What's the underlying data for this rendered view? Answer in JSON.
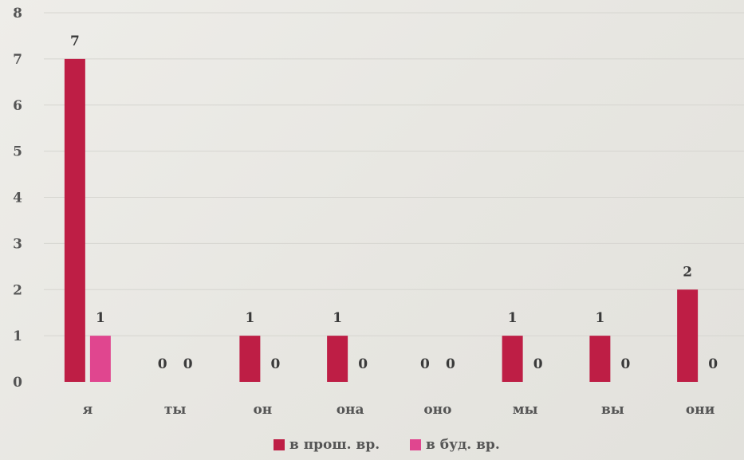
{
  "chart_data": {
    "type": "bar",
    "categories": [
      "я",
      "ты",
      "он",
      "она",
      "оно",
      "мы",
      "вы",
      "они"
    ],
    "series": [
      {
        "name": "в прош. вр.",
        "color": "#be1e45",
        "values": [
          7,
          0,
          1,
          1,
          0,
          1,
          1,
          2
        ]
      },
      {
        "name": "в буд. вр.",
        "color": "#e0468f",
        "values": [
          1,
          0,
          0,
          0,
          0,
          0,
          0,
          0
        ]
      }
    ],
    "ylim": [
      0,
      8
    ],
    "yticks": [
      0,
      1,
      2,
      3,
      4,
      5,
      6,
      7,
      8
    ],
    "grid": true,
    "legend": "bottom",
    "title": "",
    "xlabel": "",
    "ylabel": ""
  }
}
